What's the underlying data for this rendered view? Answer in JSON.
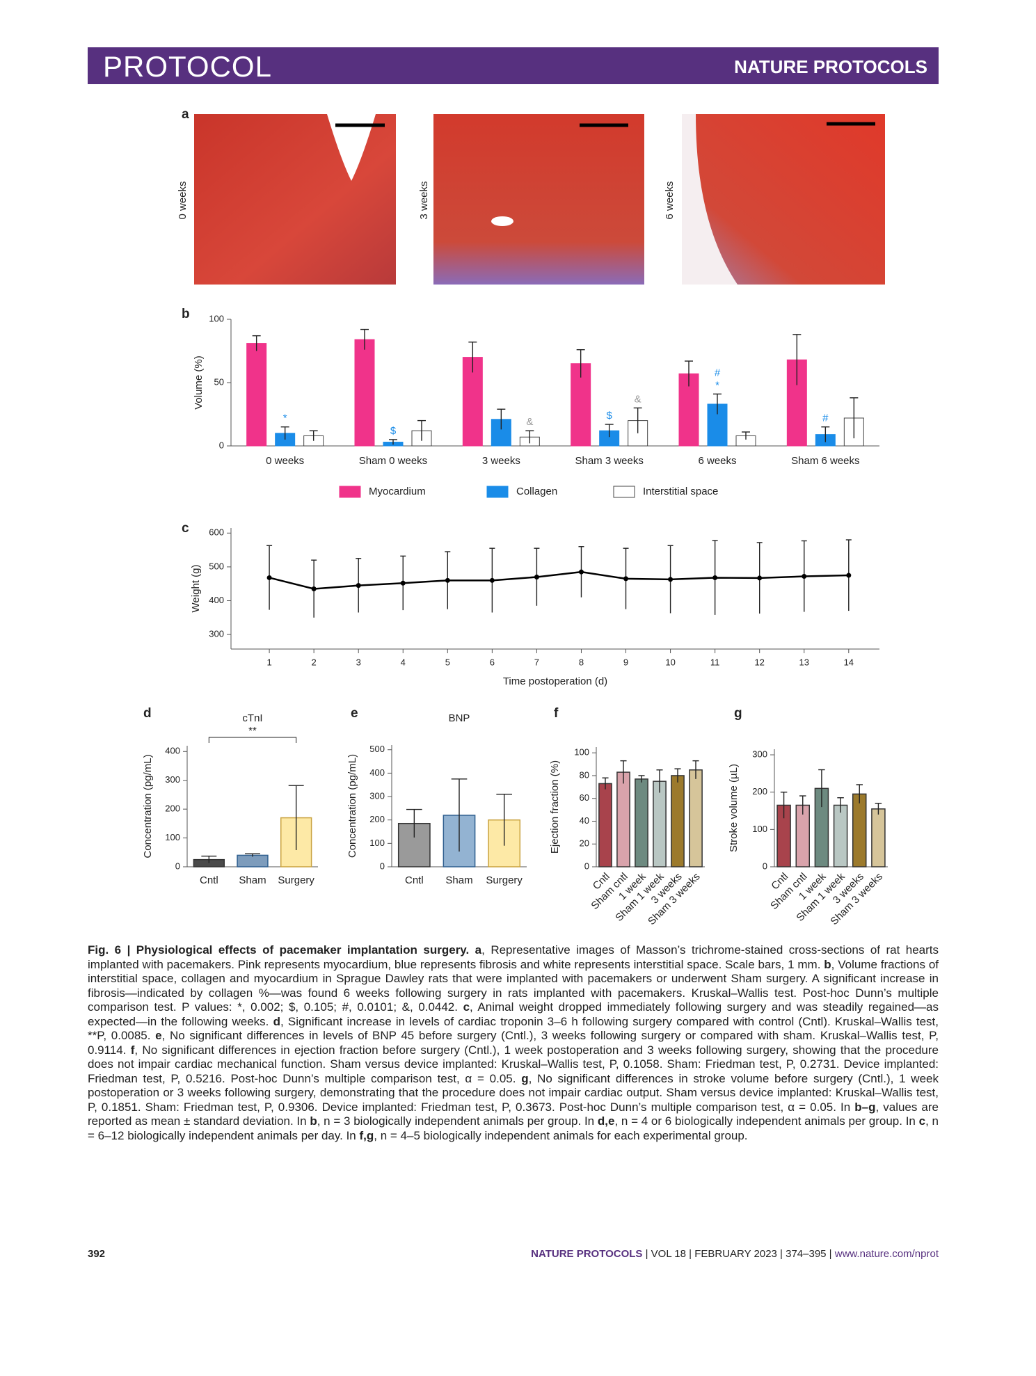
{
  "header": {
    "section": "PROTOCOL",
    "journal": "NATURE PROTOCOLS"
  },
  "panel_a": {
    "letter": "a",
    "labels": [
      "0 weeks",
      "3 weeks",
      "6 weeks"
    ]
  },
  "chart_data": [
    {
      "type": "bar",
      "panel": "b",
      "ylabel": "Volume (%)",
      "categories": [
        "0 weeks",
        "Sham 0 weeks",
        "3 weeks",
        "Sham 3 weeks",
        "6 weeks",
        "Sham 6 weeks"
      ],
      "series": [
        {
          "name": "Myocardium",
          "color": "#f0338a",
          "values": [
            81,
            84,
            70,
            65,
            57,
            68
          ],
          "errors": [
            6,
            8,
            12,
            11,
            10,
            20
          ]
        },
        {
          "name": "Collagen",
          "color": "#1a8ce8",
          "values": [
            10,
            3,
            21,
            12,
            33,
            9
          ],
          "errors": [
            5,
            2,
            8,
            5,
            8,
            6
          ],
          "markers": [
            [
              "*"
            ],
            [
              "$"
            ],
            null,
            [
              "$"
            ],
            [
              "#",
              "*"
            ],
            [
              "#"
            ]
          ]
        },
        {
          "name": "Interstitial space",
          "color": "#ffffff",
          "values": [
            8,
            12,
            7,
            20,
            8,
            22
          ],
          "errors": [
            4,
            8,
            5,
            10,
            3,
            16
          ],
          "markers": [
            null,
            null,
            [
              "&"
            ],
            [
              "&"
            ],
            null,
            null
          ]
        }
      ],
      "ylim": [
        0,
        100
      ],
      "yticks": [
        0,
        50,
        100
      ]
    },
    {
      "type": "line",
      "panel": "c",
      "ylabel": "Weight (g)",
      "xlabel": "Time postoperation (d)",
      "color": "#000000",
      "x": [
        1,
        2,
        3,
        4,
        5,
        6,
        7,
        8,
        9,
        10,
        11,
        12,
        13,
        14
      ],
      "values": [
        468,
        435,
        445,
        452,
        460,
        460,
        470,
        485,
        465,
        463,
        468,
        467,
        472,
        475
      ],
      "errors": [
        95,
        85,
        80,
        80,
        85,
        95,
        85,
        75,
        90,
        100,
        110,
        105,
        105,
        105
      ],
      "xlim": [
        0.14,
        14.69
      ],
      "xticks": [
        1,
        2,
        3,
        4,
        5,
        6,
        7,
        8,
        9,
        10,
        11,
        12,
        13,
        14
      ],
      "ylim": [
        257,
        615
      ],
      "yticks": [
        300,
        400,
        500,
        600
      ]
    },
    {
      "type": "bar",
      "panel": "d",
      "title": "cTnI",
      "ylabel": "Concentration (pg/mL)",
      "categories": [
        "Cntl",
        "Sham",
        "Surgery"
      ],
      "values": [
        25,
        40,
        170
      ],
      "errors": [
        12,
        5,
        112
      ],
      "colors": [
        "#4a4a4a",
        "#7d9cbc",
        "#fde9a6"
      ],
      "edge_colors": [
        "#333333",
        "#2f5f8f",
        "#c9a23f"
      ],
      "bracket": "**",
      "ylim": [
        0,
        420
      ],
      "yticks": [
        0,
        100,
        200,
        300,
        400
      ]
    },
    {
      "type": "bar",
      "panel": "e",
      "title": "BNP",
      "ylabel": "Concentration (pg/mL)",
      "categories": [
        "Cntl",
        "Sham",
        "Surgery"
      ],
      "values": [
        185,
        220,
        200
      ],
      "errors": [
        60,
        155,
        110
      ],
      "colors": [
        "#9a9a9a",
        "#93b3d2",
        "#fde9a6"
      ],
      "edge_colors": [
        "#333333",
        "#2f5f8f",
        "#c9a23f"
      ],
      "ylim": [
        0,
        520
      ],
      "yticks": [
        0,
        100,
        200,
        300,
        400,
        500
      ]
    },
    {
      "type": "bar",
      "panel": "f",
      "ylabel": "Ejection fraction (%)",
      "categories": [
        "Cntl",
        "Sham cntl",
        "1 week",
        "Sham 1 week",
        "3 weeks",
        "Sham 3 weeks"
      ],
      "values": [
        73,
        83,
        77,
        75,
        80,
        85
      ],
      "errors": [
        5,
        10,
        3,
        10,
        6,
        8
      ],
      "colors": [
        "#a8434c",
        "#d9a3ab",
        "#6d8a80",
        "#b9c7c3",
        "#9c7a2c",
        "#d6c59a"
      ],
      "ylim": [
        0,
        105
      ],
      "yticks": [
        0,
        20,
        40,
        60,
        80,
        100
      ]
    },
    {
      "type": "bar",
      "panel": "g",
      "ylabel": "Stroke volume (µL)",
      "categories": [
        "Cntl",
        "Sham cntl",
        "1 week",
        "Sham 1 week",
        "3 weeks",
        "Sham 3 weeks"
      ],
      "values": [
        165,
        165,
        210,
        165,
        195,
        155
      ],
      "errors": [
        35,
        25,
        50,
        20,
        25,
        15
      ],
      "colors": [
        "#a8434c",
        "#d9a3ab",
        "#6d8a80",
        "#b9c7c3",
        "#9c7a2c",
        "#d6c59a"
      ],
      "ylim": [
        0,
        315
      ],
      "yticks": [
        0,
        100,
        200,
        300
      ]
    }
  ],
  "caption": [
    {
      "text": "Fig. 6 | Physiological effects of pacemaker implantation surgery. a",
      "bold": true
    },
    {
      "text": ", Representative images of Masson’s trichrome-stained cross-sections of rat hearts implanted with pacemakers. Pink represents myocardium, blue represents fibrosis and white represents interstitial space. Scale bars, 1 mm. "
    },
    {
      "text": "b",
      "bold": true
    },
    {
      "text": ", Volume fractions of interstitial space, collagen and myocardium in Sprague Dawley rats that were implanted with pacemakers or underwent Sham surgery. A significant increase in fibrosis—indicated by collagen %—was found 6 weeks following surgery in rats implanted with pacemakers. Kruskal–Wallis test. Post-hoc Dunn’s multiple comparison test. P values: *, 0.002; $, 0.105; #, 0.0101; &, 0.0442. "
    },
    {
      "text": "c",
      "bold": true
    },
    {
      "text": ", Animal weight dropped immediately following surgery and was steadily regained—as expected—in the following weeks. "
    },
    {
      "text": "d",
      "bold": true
    },
    {
      "text": ", Significant increase in levels of cardiac troponin 3–6 h following surgery compared with control (Cntl). Kruskal–Wallis test, **P, 0.0085. "
    },
    {
      "text": "e",
      "bold": true
    },
    {
      "text": ", No significant differences in levels of BNP 45 before surgery (Cntl.), 3 weeks following surgery or compared with sham. Kruskal–Wallis test, P, 0.9114. "
    },
    {
      "text": "f",
      "bold": true
    },
    {
      "text": ", No significant differences in ejection fraction before surgery (Cntl.), 1 week postoperation and 3 weeks following surgery, showing that the procedure does not impair cardiac mechanical function. Sham versus device implanted: Kruskal–Wallis test, P, 0.1058. Sham: Friedman test, P, 0.2731. Device implanted: Friedman test, P, 0.5216. Post-hoc Dunn’s multiple comparison test, α = 0.05. "
    },
    {
      "text": "g",
      "bold": true
    },
    {
      "text": ", No significant differences in stroke volume before surgery (Cntl.), 1 week postoperation or 3 weeks following surgery, demonstrating that the procedure does not impair cardiac output. Sham versus device implanted: Kruskal–Wallis test, P, 0.1851. Sham: Friedman test, P, 0.9306. Device implanted: Friedman test, P, 0.3673. Post-hoc Dunn’s multiple comparison test, α = 0.05. In "
    },
    {
      "text": "b–g",
      "bold": true
    },
    {
      "text": ", values are reported as mean ± standard deviation. In "
    },
    {
      "text": "b",
      "bold": true
    },
    {
      "text": ", n = 3 biologically independent animals per group. In "
    },
    {
      "text": "d,e",
      "bold": true
    },
    {
      "text": ", n = 4 or 6 biologically independent animals per group. In "
    },
    {
      "text": "c",
      "bold": true
    },
    {
      "text": ", n = 6–12 biologically independent animals per day. In "
    },
    {
      "text": "f,g",
      "bold": true
    },
    {
      "text": ", n = 4–5 biologically independent animals for each experimental group."
    }
  ],
  "footer": {
    "page": "392",
    "journal": "NATURE PROTOCOLS",
    "issue": "| VOL 18 | FEBRUARY 2023 | 374–395 |",
    "url": "www.nature.com/nprot"
  }
}
